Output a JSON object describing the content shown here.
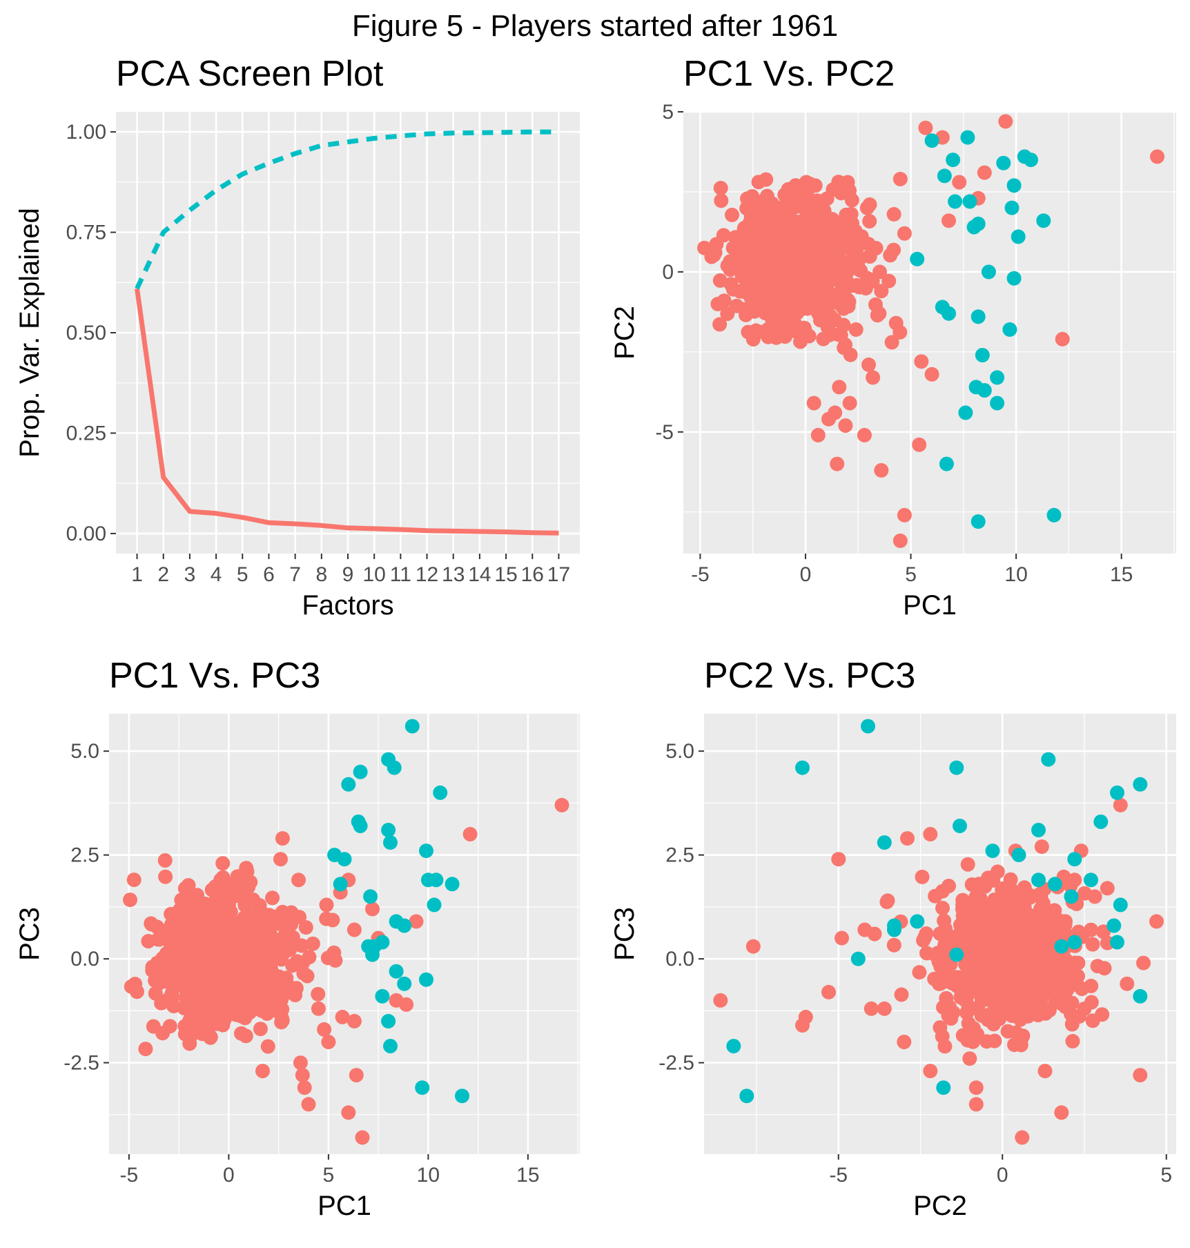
{
  "figure_title": "Figure 5 - Players started after 1961",
  "colors": {
    "series_a": "#F8766D",
    "series_b": "#00BFC4",
    "panel_bg": "#EBEBEB",
    "grid": "#FFFFFF"
  },
  "chart_data": [
    {
      "type": "line",
      "title": "PCA Screen Plot",
      "xlabel": "Factors",
      "ylabel": "Prop. Var. Explained",
      "xlim": [
        0.2,
        17.8
      ],
      "ylim": [
        -0.05,
        1.05
      ],
      "x_ticks": [
        1,
        2,
        3,
        4,
        5,
        6,
        7,
        8,
        9,
        10,
        11,
        12,
        13,
        14,
        15,
        16,
        17
      ],
      "x_tick_labels": [
        "1",
        "2",
        "3",
        "4",
        "5",
        "6",
        "7",
        "8",
        "9",
        "10",
        "11",
        "12",
        "13",
        "14",
        "15",
        "16",
        "17"
      ],
      "y_ticks": [
        0,
        0.25,
        0.5,
        0.75,
        1.0
      ],
      "y_tick_labels": [
        "0.00",
        "0.25",
        "0.50",
        "0.75",
        "1.00"
      ],
      "grid": true,
      "legend": "none",
      "x": [
        1,
        2,
        3,
        4,
        5,
        6,
        7,
        8,
        9,
        10,
        11,
        12,
        13,
        14,
        15,
        16,
        17
      ],
      "series": [
        {
          "style": "solid",
          "color": "#F8766D",
          "values": [
            0.61,
            0.14,
            0.055,
            0.05,
            0.04,
            0.027,
            0.024,
            0.02,
            0.014,
            0.012,
            0.01,
            0.007,
            0.006,
            0.005,
            0.004,
            0.002,
            0.001
          ]
        },
        {
          "style": "dashed",
          "color": "#00BFC4",
          "values": [
            0.61,
            0.75,
            0.805,
            0.855,
            0.895,
            0.922,
            0.946,
            0.966,
            0.975,
            0.984,
            0.99,
            0.995,
            0.997,
            0.998,
            0.999,
            1.0,
            1.0
          ]
        }
      ]
    },
    {
      "type": "scatter",
      "title": "PC1 Vs. PC2",
      "xlabel": "PC1",
      "ylabel": "PC2",
      "xlim": [
        -5.8,
        17.6
      ],
      "ylim": [
        -8.8,
        5.0
      ],
      "x_ticks": [
        -5,
        0,
        5,
        10,
        15
      ],
      "x_tick_labels": [
        "-5",
        "0",
        "5",
        "10",
        "15"
      ],
      "y_ticks": [
        -5,
        0,
        5
      ],
      "y_tick_labels": [
        "-5",
        "0",
        "5"
      ],
      "grid": true,
      "legend": "none",
      "series": [
        {
          "color": "#F8766D",
          "cluster": {
            "count": 650,
            "cx": -0.5,
            "cy": 0.4,
            "sx": 1.7,
            "sy": 1.1,
            "xmin": -5,
            "xmax": 6,
            "ymin": -3.5,
            "ymax": 2.9
          },
          "points": [
            [
              5.7,
              4.5
            ],
            [
              6.5,
              4.2
            ],
            [
              9.5,
              4.7
            ],
            [
              16.7,
              3.6
            ],
            [
              8.5,
              3.1
            ],
            [
              4.5,
              2.9
            ],
            [
              2.0,
              2.8
            ],
            [
              12.2,
              -2.1
            ],
            [
              4.2,
              1.8
            ],
            [
              3.6,
              -0.6
            ],
            [
              3.5,
              -1.3
            ],
            [
              4.3,
              -1.6
            ],
            [
              4.1,
              -2.2
            ],
            [
              5.5,
              -2.8
            ],
            [
              6.0,
              -3.2
            ],
            [
              3.2,
              -3.3
            ],
            [
              0.4,
              -4.1
            ],
            [
              1.4,
              -4.4
            ],
            [
              2.1,
              -4.1
            ],
            [
              1.9,
              -4.8
            ],
            [
              1.1,
              -4.6
            ],
            [
              2.8,
              -5.1
            ],
            [
              0.6,
              -5.1
            ],
            [
              5.4,
              -5.4
            ],
            [
              1.5,
              -6.0
            ],
            [
              3.6,
              -6.2
            ],
            [
              4.7,
              -7.6
            ],
            [
              4.5,
              -8.4
            ],
            [
              3.0,
              -2.9
            ],
            [
              2.4,
              -1.8
            ],
            [
              1.6,
              -3.6
            ],
            [
              4.7,
              1.2
            ],
            [
              6.8,
              1.6
            ],
            [
              7.3,
              2.8
            ],
            [
              8.2,
              2.3
            ]
          ]
        },
        {
          "color": "#00BFC4",
          "points": [
            [
              6.0,
              4.1
            ],
            [
              7.7,
              4.2
            ],
            [
              7.0,
              3.5
            ],
            [
              9.4,
              3.4
            ],
            [
              10.4,
              3.6
            ],
            [
              10.7,
              3.5
            ],
            [
              6.6,
              3.0
            ],
            [
              9.9,
              2.7
            ],
            [
              7.1,
              2.2
            ],
            [
              7.8,
              2.2
            ],
            [
              9.8,
              2.0
            ],
            [
              8.0,
              1.4
            ],
            [
              8.2,
              1.5
            ],
            [
              11.3,
              1.6
            ],
            [
              10.1,
              1.1
            ],
            [
              5.3,
              0.4
            ],
            [
              8.7,
              0.0
            ],
            [
              9.9,
              -0.2
            ],
            [
              6.5,
              -1.1
            ],
            [
              6.8,
              -1.3
            ],
            [
              8.2,
              -1.4
            ],
            [
              9.7,
              -1.8
            ],
            [
              8.4,
              -2.6
            ],
            [
              9.1,
              -3.3
            ],
            [
              8.1,
              -3.6
            ],
            [
              8.5,
              -3.7
            ],
            [
              9.1,
              -4.1
            ],
            [
              7.6,
              -4.4
            ],
            [
              6.7,
              -6.0
            ],
            [
              8.2,
              -7.8
            ],
            [
              11.8,
              -7.6
            ]
          ]
        }
      ]
    },
    {
      "type": "scatter",
      "title": "PC1 Vs. PC3",
      "xlabel": "PC1",
      "ylabel": "PC3",
      "xlim": [
        -6.0,
        17.6
      ],
      "ylim": [
        -4.7,
        5.9
      ],
      "x_ticks": [
        -5,
        0,
        5,
        10,
        15
      ],
      "x_tick_labels": [
        "-5",
        "0",
        "5",
        "10",
        "15"
      ],
      "y_ticks": [
        -2.5,
        0,
        2.5,
        5.0
      ],
      "y_tick_labels": [
        "-2.5",
        "0.0",
        "2.5",
        "5.0"
      ],
      "grid": true,
      "legend": "none",
      "series": [
        {
          "color": "#F8766D",
          "cluster": {
            "count": 650,
            "cx": -0.3,
            "cy": 0.0,
            "sx": 1.8,
            "sy": 0.85,
            "xmin": -5,
            "xmax": 6,
            "ymin": -2.3,
            "ymax": 2.4
          },
          "points": [
            [
              16.7,
              3.7
            ],
            [
              12.1,
              3.0
            ],
            [
              9.4,
              0.9
            ],
            [
              2.7,
              2.9
            ],
            [
              3.5,
              1.9
            ],
            [
              5.6,
              1.6
            ],
            [
              6.0,
              1.9
            ],
            [
              4.9,
              1.3
            ],
            [
              6.3,
              0.7
            ],
            [
              7.2,
              1.2
            ],
            [
              7.5,
              0.5
            ],
            [
              8.9,
              -1.1
            ],
            [
              8.4,
              -1.0
            ],
            [
              6.3,
              -1.5
            ],
            [
              5.7,
              -1.4
            ],
            [
              3.6,
              -2.5
            ],
            [
              3.8,
              -3.1
            ],
            [
              3.7,
              -2.8
            ],
            [
              1.7,
              -2.7
            ],
            [
              4.0,
              -3.5
            ],
            [
              6.4,
              -2.8
            ],
            [
              6.0,
              -3.7
            ],
            [
              6.7,
              -4.3
            ],
            [
              -0.3,
              2.3
            ],
            [
              2.6,
              2.4
            ],
            [
              5.0,
              -2.0
            ],
            [
              4.5,
              -1.2
            ]
          ]
        },
        {
          "color": "#00BFC4",
          "points": [
            [
              9.2,
              5.6
            ],
            [
              8.0,
              4.8
            ],
            [
              8.3,
              4.6
            ],
            [
              6.6,
              4.5
            ],
            [
              6.0,
              4.2
            ],
            [
              10.6,
              4.0
            ],
            [
              6.5,
              3.3
            ],
            [
              6.6,
              3.2
            ],
            [
              8.0,
              3.1
            ],
            [
              8.1,
              2.8
            ],
            [
              9.9,
              2.6
            ],
            [
              5.3,
              2.5
            ],
            [
              5.8,
              2.4
            ],
            [
              10.0,
              1.9
            ],
            [
              10.4,
              1.9
            ],
            [
              11.2,
              1.8
            ],
            [
              5.6,
              1.8
            ],
            [
              7.1,
              1.5
            ],
            [
              10.3,
              1.3
            ],
            [
              8.4,
              0.9
            ],
            [
              8.8,
              0.8
            ],
            [
              7.0,
              0.3
            ],
            [
              7.3,
              0.3
            ],
            [
              7.7,
              0.4
            ],
            [
              7.2,
              0.1
            ],
            [
              8.4,
              -0.3
            ],
            [
              8.8,
              -0.6
            ],
            [
              9.9,
              -0.5
            ],
            [
              7.7,
              -0.9
            ],
            [
              8.0,
              -1.5
            ],
            [
              8.1,
              -2.1
            ],
            [
              9.7,
              -3.1
            ],
            [
              11.7,
              -3.3
            ]
          ]
        }
      ]
    },
    {
      "type": "scatter",
      "title": "PC2 Vs. PC3",
      "xlabel": "PC2",
      "ylabel": "PC3",
      "xlim": [
        -9.1,
        5.3
      ],
      "ylim": [
        -4.7,
        5.9
      ],
      "x_ticks": [
        -5,
        0,
        5
      ],
      "x_tick_labels": [
        "-5",
        "0",
        "5"
      ],
      "y_ticks": [
        -2.5,
        0,
        2.5,
        5.0
      ],
      "y_tick_labels": [
        "-2.5",
        "0.0",
        "2.5",
        "5.0"
      ],
      "grid": true,
      "legend": "none",
      "series": [
        {
          "color": "#F8766D",
          "cluster": {
            "count": 650,
            "cx": 0.2,
            "cy": 0.0,
            "sx": 1.2,
            "sy": 0.85,
            "xmin": -3.6,
            "xmax": 3.6,
            "ymin": -2.3,
            "ymax": 2.4
          },
          "points": [
            [
              -8.6,
              -1.0
            ],
            [
              -7.6,
              0.3
            ],
            [
              -6.1,
              -1.6
            ],
            [
              -6.0,
              -1.4
            ],
            [
              -5.3,
              -0.8
            ],
            [
              -4.9,
              0.5
            ],
            [
              -5.0,
              2.4
            ],
            [
              -4.2,
              0.7
            ],
            [
              -3.9,
              0.6
            ],
            [
              -3.6,
              -1.2
            ],
            [
              -3.5,
              1.4
            ],
            [
              -2.9,
              2.9
            ],
            [
              -2.2,
              3.0
            ],
            [
              -2.2,
              -2.7
            ],
            [
              -1.0,
              -2.4
            ],
            [
              -0.8,
              -3.1
            ],
            [
              -0.8,
              -3.5
            ],
            [
              0.4,
              2.6
            ],
            [
              0.6,
              -4.3
            ],
            [
              1.2,
              2.7
            ],
            [
              1.8,
              -3.7
            ],
            [
              2.2,
              1.9
            ],
            [
              2.4,
              2.6
            ],
            [
              3.2,
              1.7
            ],
            [
              3.6,
              3.7
            ],
            [
              3.8,
              -0.6
            ],
            [
              4.3,
              -0.1
            ],
            [
              4.7,
              0.9
            ],
            [
              4.2,
              -2.8
            ],
            [
              -4.0,
              -1.2
            ],
            [
              -3.0,
              -2.0
            ],
            [
              1.3,
              -2.7
            ]
          ]
        },
        {
          "color": "#00BFC4",
          "points": [
            [
              -4.1,
              5.6
            ],
            [
              1.4,
              4.8
            ],
            [
              -6.1,
              4.6
            ],
            [
              -1.4,
              4.6
            ],
            [
              4.2,
              4.2
            ],
            [
              3.5,
              4.0
            ],
            [
              3.0,
              3.3
            ],
            [
              -1.3,
              3.2
            ],
            [
              1.1,
              3.1
            ],
            [
              -3.6,
              2.8
            ],
            [
              -0.3,
              2.6
            ],
            [
              0.5,
              2.5
            ],
            [
              2.2,
              2.4
            ],
            [
              2.7,
              1.9
            ],
            [
              1.1,
              1.9
            ],
            [
              1.6,
              1.8
            ],
            [
              2.1,
              1.5
            ],
            [
              3.6,
              1.3
            ],
            [
              -2.6,
              0.9
            ],
            [
              -3.3,
              0.8
            ],
            [
              3.4,
              0.8
            ],
            [
              -3.3,
              0.7
            ],
            [
              2.2,
              0.4
            ],
            [
              3.5,
              0.4
            ],
            [
              -4.4,
              0.0
            ],
            [
              -1.4,
              0.1
            ],
            [
              4.2,
              -0.9
            ],
            [
              -8.2,
              -2.1
            ],
            [
              -1.8,
              -3.1
            ],
            [
              -7.8,
              -3.3
            ],
            [
              1.8,
              0.3
            ]
          ]
        }
      ]
    }
  ]
}
